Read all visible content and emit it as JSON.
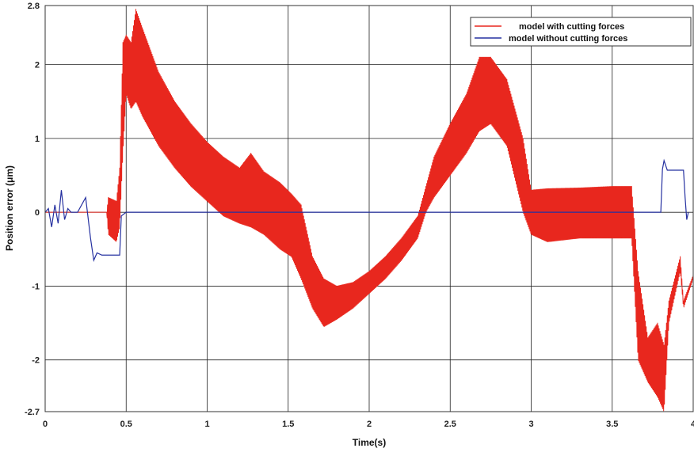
{
  "chart_data": {
    "type": "line",
    "title": "",
    "xlabel": "Time(s)",
    "ylabel": "Position error (μm)",
    "xlim": [
      0,
      4
    ],
    "ylim": [
      -2.7,
      2.8
    ],
    "x_ticks": [
      "0",
      "0.5",
      "1",
      "1.5",
      "2",
      "2.5",
      "3",
      "3.5",
      "4"
    ],
    "y_ticks": [
      "-2.7",
      "-2",
      "-1",
      "0",
      "1",
      "2",
      "2.8"
    ],
    "x_tick_values": [
      0,
      0.5,
      1,
      1.5,
      2,
      2.5,
      3,
      3.5,
      4
    ],
    "y_tick_values": [
      -2.7,
      -2,
      -1,
      0,
      1,
      2,
      2.8
    ],
    "grid": true,
    "legend_position": "top-right",
    "series": [
      {
        "name": "model with cutting forces",
        "color": "#e8271e",
        "envelope": [
          {
            "x": 0.0,
            "lo": 0.0,
            "hi": 0.0
          },
          {
            "x": 0.38,
            "lo": 0.0,
            "hi": 0.0
          },
          {
            "x": 0.39,
            "lo": -0.3,
            "hi": 0.2
          },
          {
            "x": 0.44,
            "lo": -0.4,
            "hi": 0.15
          },
          {
            "x": 0.46,
            "lo": -0.2,
            "hi": 0.6
          },
          {
            "x": 0.48,
            "lo": 0.8,
            "hi": 2.3
          },
          {
            "x": 0.5,
            "lo": 1.6,
            "hi": 2.4
          },
          {
            "x": 0.53,
            "lo": 1.4,
            "hi": 2.3
          },
          {
            "x": 0.56,
            "lo": 1.5,
            "hi": 2.75
          },
          {
            "x": 0.6,
            "lo": 1.3,
            "hi": 2.5
          },
          {
            "x": 0.7,
            "lo": 0.9,
            "hi": 1.9
          },
          {
            "x": 0.8,
            "lo": 0.6,
            "hi": 1.5
          },
          {
            "x": 0.9,
            "lo": 0.35,
            "hi": 1.2
          },
          {
            "x": 1.0,
            "lo": 0.15,
            "hi": 0.95
          },
          {
            "x": 1.1,
            "lo": -0.05,
            "hi": 0.75
          },
          {
            "x": 1.2,
            "lo": -0.15,
            "hi": 0.6
          },
          {
            "x": 1.27,
            "lo": -0.2,
            "hi": 0.8
          },
          {
            "x": 1.35,
            "lo": -0.3,
            "hi": 0.55
          },
          {
            "x": 1.45,
            "lo": -0.5,
            "hi": 0.4
          },
          {
            "x": 1.52,
            "lo": -0.6,
            "hi": 0.25
          },
          {
            "x": 1.58,
            "lo": -0.9,
            "hi": 0.1
          },
          {
            "x": 1.65,
            "lo": -1.3,
            "hi": -0.6
          },
          {
            "x": 1.72,
            "lo": -1.55,
            "hi": -0.9
          },
          {
            "x": 1.8,
            "lo": -1.45,
            "hi": -1.0
          },
          {
            "x": 1.9,
            "lo": -1.3,
            "hi": -0.95
          },
          {
            "x": 2.0,
            "lo": -1.1,
            "hi": -0.8
          },
          {
            "x": 2.1,
            "lo": -0.9,
            "hi": -0.6
          },
          {
            "x": 2.2,
            "lo": -0.65,
            "hi": -0.35
          },
          {
            "x": 2.3,
            "lo": -0.35,
            "hi": -0.05
          },
          {
            "x": 2.35,
            "lo": 0.0,
            "hi": 0.35
          },
          {
            "x": 2.4,
            "lo": 0.2,
            "hi": 0.75
          },
          {
            "x": 2.5,
            "lo": 0.5,
            "hi": 1.2
          },
          {
            "x": 2.6,
            "lo": 0.8,
            "hi": 1.6
          },
          {
            "x": 2.68,
            "lo": 1.1,
            "hi": 2.1
          },
          {
            "x": 2.75,
            "lo": 1.2,
            "hi": 2.1
          },
          {
            "x": 2.85,
            "lo": 0.9,
            "hi": 1.8
          },
          {
            "x": 2.95,
            "lo": 0.0,
            "hi": 1.0
          },
          {
            "x": 3.0,
            "lo": -0.3,
            "hi": 0.3
          },
          {
            "x": 3.1,
            "lo": -0.4,
            "hi": 0.32
          },
          {
            "x": 3.3,
            "lo": -0.35,
            "hi": 0.33
          },
          {
            "x": 3.5,
            "lo": -0.35,
            "hi": 0.35
          },
          {
            "x": 3.62,
            "lo": -0.35,
            "hi": 0.35
          },
          {
            "x": 3.66,
            "lo": -2.0,
            "hi": -0.8
          },
          {
            "x": 3.72,
            "lo": -2.3,
            "hi": -1.7
          },
          {
            "x": 3.78,
            "lo": -2.5,
            "hi": -1.5
          },
          {
            "x": 3.82,
            "lo": -2.7,
            "hi": -1.8
          },
          {
            "x": 3.85,
            "lo": -1.5,
            "hi": -1.2
          },
          {
            "x": 3.92,
            "lo": -0.8,
            "hi": -0.6
          },
          {
            "x": 3.94,
            "lo": -1.3,
            "hi": -1.2
          },
          {
            "x": 4.0,
            "lo": -0.9,
            "hi": -0.85
          }
        ]
      },
      {
        "name": "model without cutting forces",
        "color": "#2530a0",
        "points": [
          [
            0.0,
            0.0
          ],
          [
            0.02,
            0.05
          ],
          [
            0.04,
            -0.2
          ],
          [
            0.06,
            0.1
          ],
          [
            0.08,
            -0.15
          ],
          [
            0.1,
            0.3
          ],
          [
            0.12,
            -0.1
          ],
          [
            0.14,
            0.05
          ],
          [
            0.16,
            0.0
          ],
          [
            0.2,
            0.0
          ],
          [
            0.25,
            0.2
          ],
          [
            0.28,
            -0.35
          ],
          [
            0.3,
            -0.65
          ],
          [
            0.32,
            -0.55
          ],
          [
            0.35,
            -0.58
          ],
          [
            0.46,
            -0.58
          ],
          [
            0.47,
            -0.05
          ],
          [
            0.5,
            0.0
          ],
          [
            3.8,
            0.0
          ],
          [
            3.81,
            0.58
          ],
          [
            3.82,
            0.7
          ],
          [
            3.84,
            0.57
          ],
          [
            3.94,
            0.57
          ],
          [
            3.95,
            0.2
          ],
          [
            3.96,
            -0.1
          ],
          [
            3.97,
            0.0
          ]
        ]
      }
    ]
  }
}
